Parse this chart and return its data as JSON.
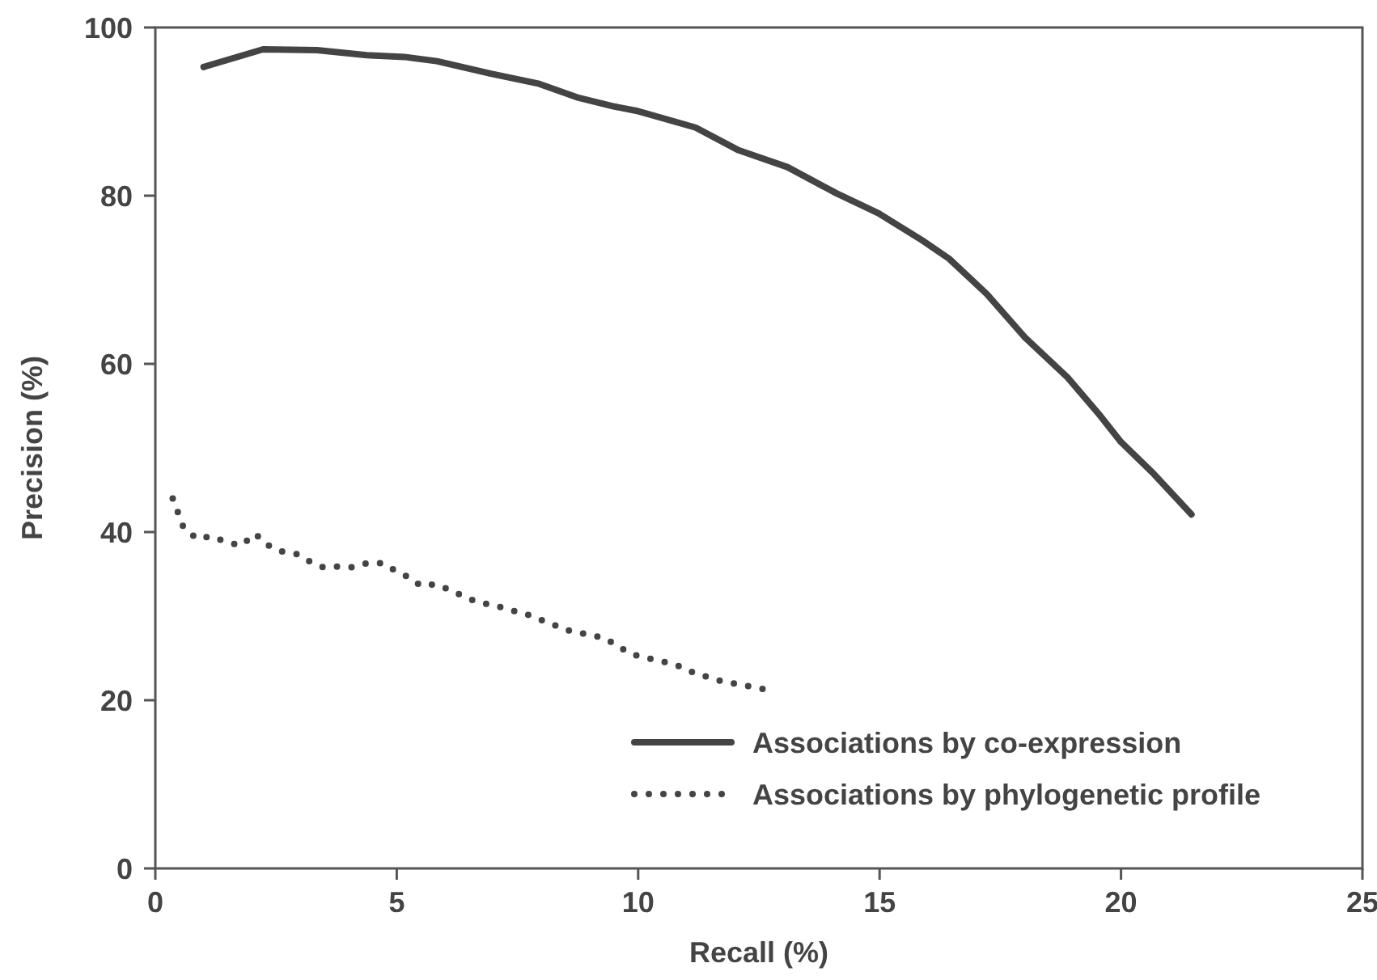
{
  "chart_data": {
    "type": "line",
    "xlabel": "Recall (%)",
    "ylabel": "Precision (%)",
    "xlim": [
      0,
      25
    ],
    "xticks": [
      0,
      5,
      10,
      15,
      20,
      25
    ],
    "ylim": [
      0,
      100
    ],
    "yticks": [
      0,
      20,
      40,
      60,
      80,
      100
    ],
    "grid": false,
    "legend": "bottom right",
    "marker": "none",
    "series": [
      {
        "name": "Associations by co-expression",
        "color": "#444444",
        "line_style": "solid",
        "x": [
          1.0,
          2.23,
          3.35,
          4.38,
          5.16,
          5.83,
          6.95,
          7.95,
          8.73,
          9.51,
          9.96,
          11.19,
          12.08,
          13.09,
          14.1,
          14.98,
          15.88,
          16.44,
          17.22,
          18.0,
          18.89,
          19.56,
          20.0,
          20.68,
          21.46
        ],
        "values": [
          95.3,
          97.4,
          97.3,
          96.7,
          96.5,
          96.0,
          94.5,
          93.3,
          91.7,
          90.6,
          90.1,
          88.1,
          85.4,
          83.4,
          80.3,
          77.9,
          74.7,
          72.5,
          68.3,
          63.2,
          58.4,
          53.9,
          50.7,
          46.9,
          42.1
        ]
      },
      {
        "name": "Associations by phylogenetic profile",
        "color": "#444444",
        "line_style": "dotted",
        "x": [
          0.36,
          0.47,
          0.58,
          0.86,
          1.17,
          1.47,
          1.78,
          2.07,
          2.31,
          2.61,
          2.92,
          3.2,
          3.48,
          3.8,
          4.09,
          4.39,
          4.71,
          4.97,
          5.26,
          5.5,
          5.81,
          6.11,
          6.4,
          6.7,
          7.03,
          7.33,
          7.62,
          7.91,
          8.18,
          8.42,
          8.7,
          8.99,
          9.29,
          9.57,
          9.81,
          10.1,
          10.37,
          10.65,
          10.93,
          11.21,
          11.49,
          11.76,
          12.07,
          12.35,
          12.62
        ],
        "values": [
          44.0,
          42.3,
          40.6,
          39.2,
          39.5,
          38.8,
          38.4,
          39.8,
          38.5,
          37.7,
          37.4,
          36.5,
          35.8,
          35.9,
          35.8,
          36.3,
          36.3,
          35.4,
          34.6,
          33.6,
          33.8,
          33.1,
          32.3,
          31.6,
          31.3,
          30.7,
          30.4,
          29.7,
          29.2,
          28.5,
          28.1,
          27.8,
          27.4,
          26.5,
          25.6,
          25.1,
          24.8,
          24.4,
          23.9,
          23.1,
          22.7,
          22.2,
          21.9,
          21.6,
          21.3
        ]
      }
    ]
  }
}
